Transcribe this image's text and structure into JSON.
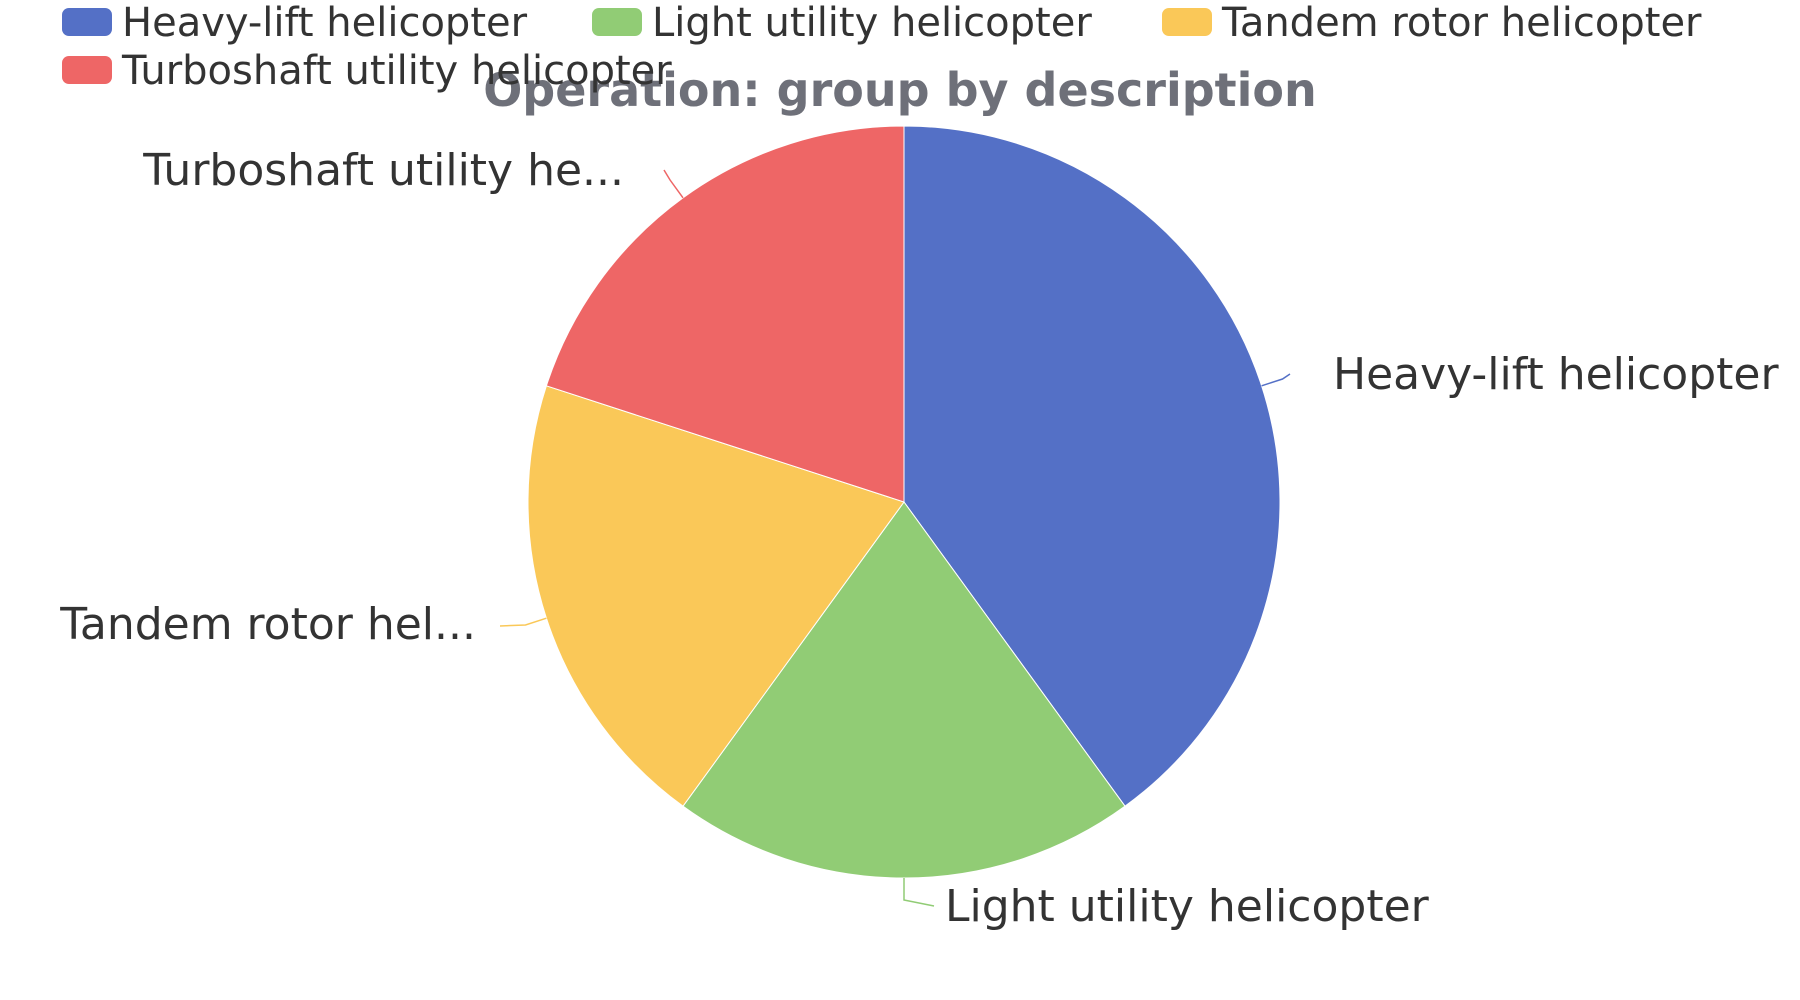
{
  "chart_data": {
    "type": "pie",
    "title": "Operation: group by description",
    "legend_position": "top-left",
    "categories": [
      "Heavy-lift helicopter",
      "Light utility helicopter",
      "Tandem rotor helicopter",
      "Turboshaft utility helicopter"
    ],
    "slice_labels": [
      "Heavy-lift helicopter",
      "Light utility helicopter",
      "Tandem rotor hel...",
      "Turboshaft utility he..."
    ],
    "values": [
      2,
      1,
      1,
      1
    ],
    "colors": [
      "#5470c6",
      "#91cc75",
      "#fac858",
      "#ee6666"
    ]
  }
}
